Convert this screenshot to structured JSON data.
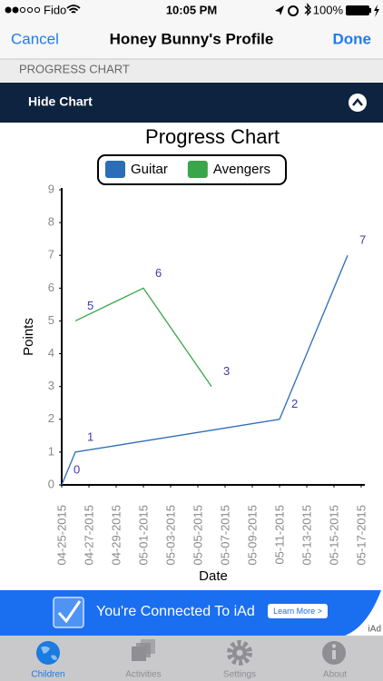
{
  "status_bar": {
    "carrier": "Fido",
    "time": "10:05 PM",
    "battery": "100%"
  },
  "nav": {
    "left": "Cancel",
    "title": "Honey Bunny's Profile",
    "right": "Done"
  },
  "section_header": "PROGRESS CHART",
  "toggle": "Hide Chart",
  "chart_data": {
    "type": "line",
    "title": "Progress Chart",
    "x_label": "Date",
    "y_label": "Points",
    "legend": "top",
    "grid": false,
    "ylim": [
      0,
      9
    ],
    "yticks": [
      0,
      1,
      2,
      3,
      4,
      5,
      6,
      7,
      8,
      9
    ],
    "xlim": [
      "04-25-2015",
      "05-17-2015"
    ],
    "xticks": [
      "04-25-2015",
      "04-27-2015",
      "04-29-2015",
      "05-01-2015",
      "05-03-2015",
      "05-05-2015",
      "05-07-2015",
      "05-09-2015",
      "05-11-2015",
      "05-13-2015",
      "05-15-2015",
      "05-17-2015"
    ],
    "series": [
      {
        "name": "Guitar",
        "color": "#2b6db8",
        "x": [
          "04-25-2015",
          "04-26-2015",
          "05-11-2015",
          "05-16-2015"
        ],
        "values": [
          0,
          1,
          2,
          7
        ]
      },
      {
        "name": "Avengers",
        "color": "#3aa64a",
        "x": [
          "04-26-2015",
          "05-01-2015",
          "05-06-2015"
        ],
        "values": [
          5,
          6,
          3
        ]
      }
    ]
  },
  "ad": {
    "text": "You're Connected To iAd",
    "button": "Learn More >",
    "badge": "iAd"
  },
  "tabs": [
    {
      "label": "Children",
      "selected": true
    },
    {
      "label": "Activities",
      "selected": false
    },
    {
      "label": "Settings",
      "selected": false
    },
    {
      "label": "About",
      "selected": false
    }
  ]
}
